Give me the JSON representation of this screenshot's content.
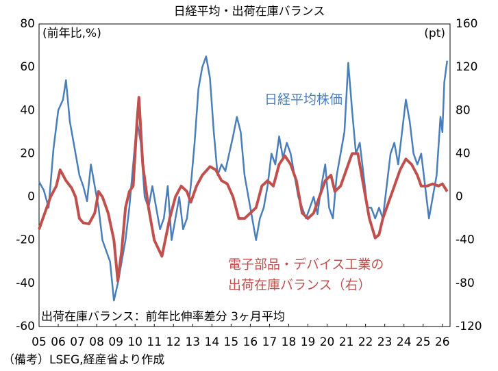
{
  "chart_data": {
    "type": "line",
    "title": "日経平均・出荷在庫バランス",
    "ylabel": "(前年比,%)",
    "y2label": "(pt)",
    "note": "出荷在庫バランス：前年比伸率差分 3ヶ月平均",
    "source": "（備考）LSEG,経産省より作成",
    "grid": false,
    "xlim": [
      2005,
      2026.4
    ],
    "xticks": [
      {
        "value": 2005,
        "label": "05"
      },
      {
        "value": 2006,
        "label": "06"
      },
      {
        "value": 2007,
        "label": "07"
      },
      {
        "value": 2008,
        "label": "08"
      },
      {
        "value": 2009,
        "label": "09"
      },
      {
        "value": 2010,
        "label": "10"
      },
      {
        "value": 2011,
        "label": "11"
      },
      {
        "value": 2012,
        "label": "12"
      },
      {
        "value": 2013,
        "label": "13"
      },
      {
        "value": 2014,
        "label": "14"
      },
      {
        "value": 2015,
        "label": "15"
      },
      {
        "value": 2016,
        "label": "16"
      },
      {
        "value": 2017,
        "label": "17"
      },
      {
        "value": 2018,
        "label": "18"
      },
      {
        "value": 2019,
        "label": "19"
      },
      {
        "value": 2020,
        "label": "20"
      },
      {
        "value": 2021,
        "label": "21"
      },
      {
        "value": 2022,
        "label": "22"
      },
      {
        "value": 2023,
        "label": "23"
      },
      {
        "value": 2024,
        "label": "24"
      },
      {
        "value": 2025,
        "label": "25"
      },
      {
        "value": 2026,
        "label": "26"
      }
    ],
    "ylim": [
      -60,
      80
    ],
    "yticks": [
      80,
      60,
      40,
      20,
      0,
      -20,
      -40,
      -60
    ],
    "y2lim": [
      -120,
      160
    ],
    "y2ticks": [
      160,
      120,
      80,
      40,
      0,
      -40,
      -80,
      -120
    ],
    "series": [
      {
        "name": [
          "日経平均株価"
        ],
        "color": "#4a7ebb",
        "axis": "y",
        "x": [
          2005.0,
          2005.25,
          2005.5,
          2005.75,
          2006.0,
          2006.25,
          2006.4,
          2006.6,
          2006.9,
          2007.1,
          2007.3,
          2007.5,
          2007.7,
          2007.9,
          2008.1,
          2008.3,
          2008.5,
          2008.7,
          2008.9,
          2009.1,
          2009.3,
          2009.5,
          2009.7,
          2009.9,
          2010.1,
          2010.3,
          2010.5,
          2010.7,
          2010.9,
          2011.1,
          2011.3,
          2011.5,
          2011.7,
          2011.9,
          2012.1,
          2012.3,
          2012.5,
          2012.7,
          2012.9,
          2013.1,
          2013.3,
          2013.5,
          2013.7,
          2013.9,
          2014.1,
          2014.3,
          2014.5,
          2014.7,
          2014.9,
          2015.1,
          2015.3,
          2015.5,
          2015.7,
          2015.9,
          2016.1,
          2016.3,
          2016.5,
          2016.7,
          2016.9,
          2017.1,
          2017.3,
          2017.5,
          2017.7,
          2017.9,
          2018.1,
          2018.3,
          2018.5,
          2018.7,
          2018.9,
          2019.1,
          2019.3,
          2019.5,
          2019.7,
          2019.9,
          2020.1,
          2020.3,
          2020.5,
          2020.7,
          2020.9,
          2021.1,
          2021.3,
          2021.5,
          2021.7,
          2021.9,
          2022.1,
          2022.3,
          2022.5,
          2022.7,
          2022.9,
          2023.1,
          2023.3,
          2023.5,
          2023.7,
          2023.9,
          2024.1,
          2024.3,
          2024.5,
          2024.7,
          2024.9,
          2025.1,
          2025.3,
          2025.5,
          2025.7,
          2025.9,
          2026.0,
          2026.1,
          2026.25
        ],
        "values": [
          7,
          3,
          -5,
          22,
          40,
          45,
          54,
          35,
          20,
          10,
          5,
          -2,
          15,
          5,
          -5,
          -20,
          -25,
          -30,
          -48,
          -40,
          -30,
          -20,
          -5,
          15,
          35,
          25,
          0,
          -5,
          5,
          -5,
          -15,
          -10,
          5,
          -20,
          -10,
          0,
          -15,
          -10,
          5,
          25,
          50,
          60,
          65,
          55,
          30,
          10,
          15,
          12,
          20,
          28,
          37,
          30,
          10,
          0,
          -10,
          -20,
          -10,
          -5,
          5,
          20,
          15,
          28,
          18,
          25,
          20,
          10,
          0,
          -5,
          -10,
          -5,
          0,
          -8,
          5,
          15,
          -5,
          -10,
          10,
          20,
          30,
          62,
          40,
          20,
          25,
          10,
          -5,
          -5,
          -10,
          -5,
          -10,
          5,
          20,
          25,
          15,
          30,
          45,
          35,
          20,
          15,
          20,
          5,
          -10,
          0,
          10,
          37,
          30,
          53,
          63
        ]
      },
      {
        "name": [
          "電子部品・デバイス工業の",
          "出荷在庫バランス（右）"
        ],
        "color": "#c0504d",
        "axis": "y2",
        "x": [
          2005.0,
          2005.3,
          2005.6,
          2005.9,
          2006.1,
          2006.4,
          2006.7,
          2006.9,
          2007.1,
          2007.3,
          2007.6,
          2007.9,
          2008.1,
          2008.3,
          2008.6,
          2008.9,
          2009.1,
          2009.3,
          2009.5,
          2009.7,
          2009.9,
          2010.0,
          2010.1,
          2010.2,
          2010.4,
          2010.7,
          2011.0,
          2011.4,
          2011.8,
          2012.1,
          2012.4,
          2012.7,
          2012.9,
          2013.2,
          2013.5,
          2013.9,
          2014.2,
          2014.5,
          2014.8,
          2015.1,
          2015.4,
          2015.7,
          2016.0,
          2016.3,
          2016.6,
          2016.9,
          2017.2,
          2017.5,
          2017.8,
          2018.1,
          2018.4,
          2018.7,
          2019.0,
          2019.3,
          2019.6,
          2019.9,
          2020.2,
          2020.4,
          2020.7,
          2021.0,
          2021.3,
          2021.6,
          2021.9,
          2022.2,
          2022.5,
          2022.7,
          2022.9,
          2023.2,
          2023.5,
          2023.8,
          2024.1,
          2024.4,
          2024.7,
          2024.9,
          2025.2,
          2025.5,
          2025.8,
          2026.0,
          2026.25
        ],
        "values": [
          -30,
          -15,
          0,
          10,
          25,
          15,
          8,
          0,
          -20,
          -24,
          -25,
          -15,
          5,
          0,
          -15,
          -40,
          -78,
          -50,
          -10,
          5,
          10,
          40,
          70,
          92,
          30,
          -10,
          -40,
          -55,
          -20,
          0,
          10,
          5,
          -5,
          10,
          20,
          28,
          25,
          15,
          12,
          0,
          -20,
          -20,
          -15,
          -10,
          10,
          15,
          10,
          30,
          38,
          30,
          15,
          -15,
          -20,
          -15,
          0,
          15,
          20,
          5,
          10,
          25,
          40,
          40,
          10,
          -20,
          -38,
          -35,
          -20,
          -5,
          10,
          25,
          35,
          30,
          20,
          10,
          10,
          12,
          10,
          12,
          5
        ]
      }
    ]
  }
}
